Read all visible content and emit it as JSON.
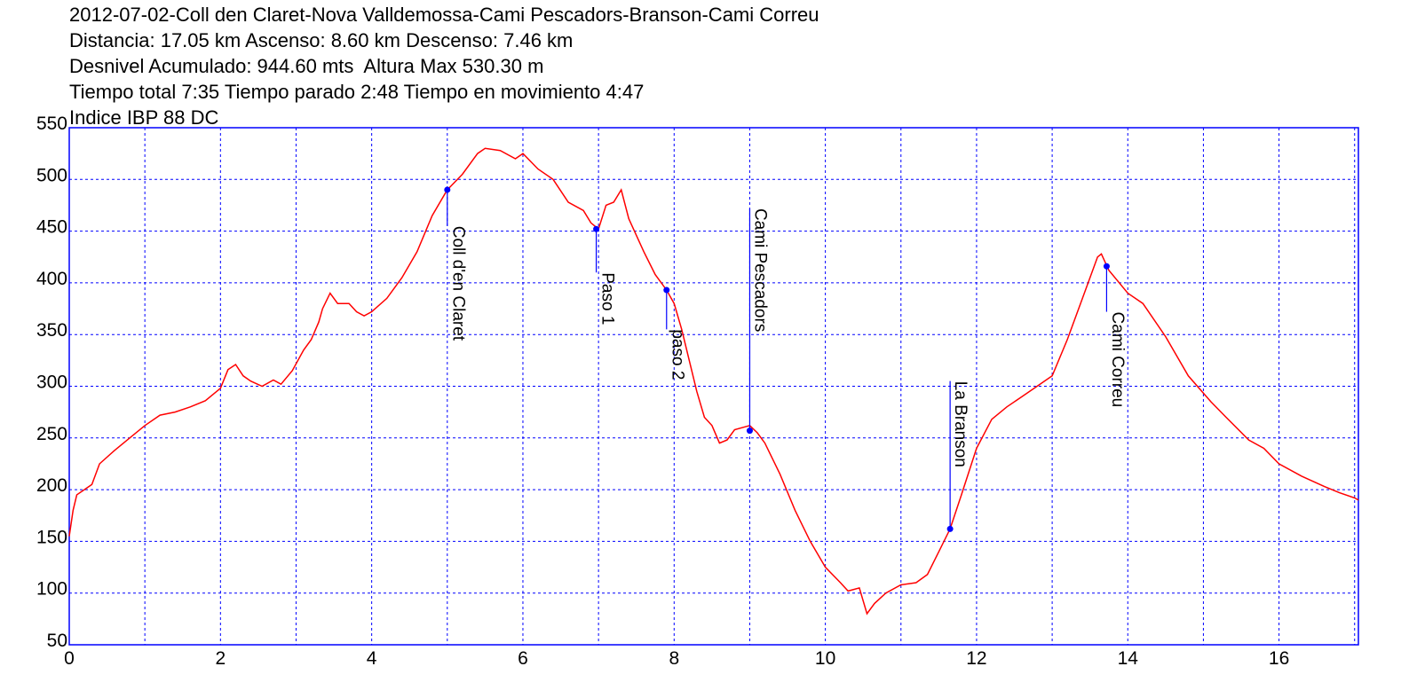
{
  "title_lines": [
    "2012-07-02-Coll den Claret-Nova Valldemossa-Cami Pescadors-Branson-Cami Correu",
    "Distancia: 17.05 km Ascenso: 8.60 km Descenso: 7.46 km",
    "Desnivel Acumulado: 944.60 mts  Altura Max 530.30 m",
    "Tiempo total 7:35 Tiempo parado 2:48 Tiempo en movimiento 4:47",
    "Indice IBP 88 DC"
  ],
  "chart_data": {
    "type": "line",
    "xlim": [
      0,
      17.05
    ],
    "ylim": [
      50,
      550
    ],
    "x_ticks": [
      0,
      2,
      4,
      6,
      8,
      10,
      12,
      14,
      16
    ],
    "y_ticks": [
      50,
      100,
      150,
      200,
      250,
      300,
      350,
      400,
      450,
      500,
      550
    ],
    "grid": true,
    "colors": {
      "line": "#ff0000",
      "grid": "#0000ff",
      "marker": "#0000ff",
      "axis": "#0000ff"
    },
    "series": [
      {
        "points": [
          [
            0,
            155
          ],
          [
            0.05,
            180
          ],
          [
            0.1,
            195
          ],
          [
            0.2,
            200
          ],
          [
            0.3,
            205
          ],
          [
            0.4,
            225
          ],
          [
            0.6,
            238
          ],
          [
            0.8,
            250
          ],
          [
            1.0,
            262
          ],
          [
            1.2,
            272
          ],
          [
            1.4,
            275
          ],
          [
            1.6,
            280
          ],
          [
            1.8,
            286
          ],
          [
            2.0,
            298
          ],
          [
            2.1,
            316
          ],
          [
            2.2,
            321
          ],
          [
            2.3,
            310
          ],
          [
            2.4,
            305
          ],
          [
            2.55,
            300
          ],
          [
            2.7,
            306
          ],
          [
            2.8,
            302
          ],
          [
            2.95,
            315
          ],
          [
            3.1,
            335
          ],
          [
            3.2,
            345
          ],
          [
            3.3,
            362
          ],
          [
            3.35,
            375
          ],
          [
            3.45,
            390
          ],
          [
            3.55,
            380
          ],
          [
            3.7,
            380
          ],
          [
            3.8,
            372
          ],
          [
            3.9,
            368
          ],
          [
            4.0,
            372
          ],
          [
            4.2,
            385
          ],
          [
            4.4,
            405
          ],
          [
            4.6,
            430
          ],
          [
            4.8,
            465
          ],
          [
            5.0,
            490
          ],
          [
            5.2,
            505
          ],
          [
            5.4,
            525
          ],
          [
            5.5,
            530
          ],
          [
            5.7,
            528
          ],
          [
            5.9,
            520
          ],
          [
            6.0,
            525
          ],
          [
            6.2,
            510
          ],
          [
            6.4,
            500
          ],
          [
            6.6,
            478
          ],
          [
            6.8,
            470
          ],
          [
            6.9,
            458
          ],
          [
            7.0,
            452
          ],
          [
            7.1,
            475
          ],
          [
            7.2,
            478
          ],
          [
            7.3,
            490
          ],
          [
            7.4,
            462
          ],
          [
            7.6,
            430
          ],
          [
            7.75,
            408
          ],
          [
            7.9,
            393
          ],
          [
            8.0,
            380
          ],
          [
            8.1,
            355
          ],
          [
            8.2,
            325
          ],
          [
            8.3,
            295
          ],
          [
            8.4,
            270
          ],
          [
            8.5,
            262
          ],
          [
            8.6,
            245
          ],
          [
            8.7,
            248
          ],
          [
            8.8,
            258
          ],
          [
            9.0,
            262
          ],
          [
            9.1,
            255
          ],
          [
            9.2,
            245
          ],
          [
            9.4,
            215
          ],
          [
            9.6,
            180
          ],
          [
            9.8,
            150
          ],
          [
            10.0,
            125
          ],
          [
            10.2,
            110
          ],
          [
            10.3,
            102
          ],
          [
            10.45,
            105
          ],
          [
            10.55,
            80
          ],
          [
            10.65,
            90
          ],
          [
            10.8,
            100
          ],
          [
            11.0,
            108
          ],
          [
            11.2,
            110
          ],
          [
            11.35,
            118
          ],
          [
            11.5,
            140
          ],
          [
            11.65,
            162
          ],
          [
            11.8,
            195
          ],
          [
            12.0,
            240
          ],
          [
            12.2,
            268
          ],
          [
            12.4,
            280
          ],
          [
            12.6,
            290
          ],
          [
            12.8,
            300
          ],
          [
            13.0,
            310
          ],
          [
            13.2,
            345
          ],
          [
            13.4,
            385
          ],
          [
            13.6,
            425
          ],
          [
            13.65,
            428
          ],
          [
            13.75,
            412
          ],
          [
            14.0,
            390
          ],
          [
            14.2,
            380
          ],
          [
            14.5,
            348
          ],
          [
            14.8,
            310
          ],
          [
            15.1,
            285
          ],
          [
            15.3,
            270
          ],
          [
            15.6,
            248
          ],
          [
            15.8,
            240
          ],
          [
            16.0,
            225
          ],
          [
            16.3,
            213
          ],
          [
            16.6,
            203
          ],
          [
            16.8,
            197
          ],
          [
            17.0,
            192
          ],
          [
            17.05,
            190
          ]
        ]
      }
    ],
    "waypoints": [
      {
        "name": "Coll d'en Claret",
        "x": 5.0,
        "y": 490,
        "label_x": 5.08,
        "label_y": 455
      },
      {
        "name": "Paso 1",
        "x": 6.97,
        "y": 452,
        "label_x": 7.05,
        "label_y": 410
      },
      {
        "name": "paso 2",
        "x": 7.9,
        "y": 393,
        "label_x": 7.98,
        "label_y": 355
      },
      {
        "name": "Cami Pescadors",
        "x": 9.0,
        "y": 257,
        "label_x": 9.07,
        "label_y": 472
      },
      {
        "name": "La Branson",
        "x": 11.65,
        "y": 162,
        "label_x": 11.72,
        "label_y": 305
      },
      {
        "name": "Cami Correu",
        "x": 13.72,
        "y": 416,
        "label_x": 13.8,
        "label_y": 372
      }
    ]
  }
}
